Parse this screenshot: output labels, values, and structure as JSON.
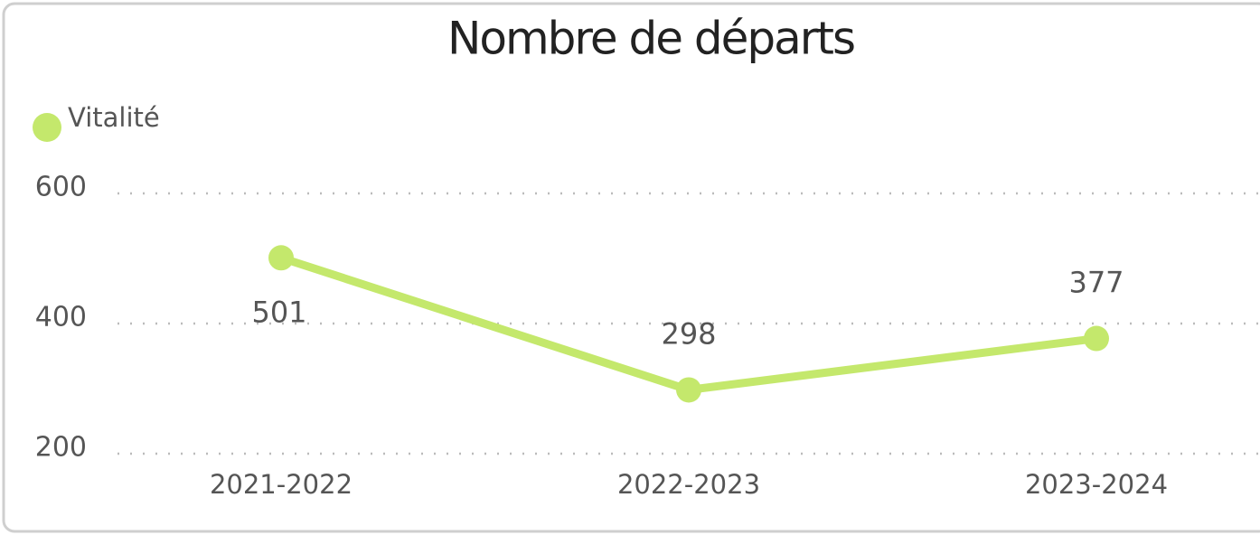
{
  "chart_data": {
    "type": "line",
    "title": "Nombre de départs",
    "categories": [
      "2021-2022",
      "2022-2023",
      "2023-2024"
    ],
    "series": [
      {
        "name": "Vitalité",
        "color": "#c4e86c",
        "values": [
          501,
          298,
          377
        ]
      }
    ],
    "ylim": [
      200,
      600
    ],
    "yticks": [
      200,
      400,
      600
    ],
    "grid": true,
    "legend": "top-left"
  }
}
